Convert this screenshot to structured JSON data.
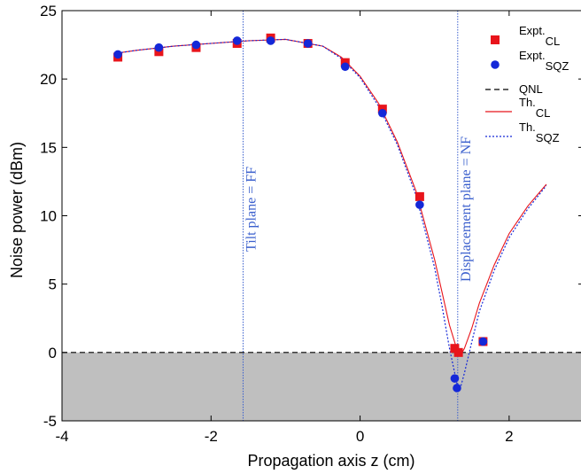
{
  "chart_data": {
    "type": "scatter",
    "xlabel": "Propagation axis z (cm)",
    "ylabel": "Noise power (dBm)",
    "xlim": [
      -4,
      3
    ],
    "ylim": [
      -5,
      25
    ],
    "xticks": [
      -4,
      -2,
      0,
      2
    ],
    "yticks": [
      -5,
      0,
      5,
      10,
      15,
      20,
      25
    ],
    "xtick_labels": [
      "-4",
      "-2",
      "0",
      "2"
    ],
    "ytick_labels": [
      "-5",
      "0",
      "5",
      "10",
      "15",
      "20",
      "25"
    ],
    "grid": false,
    "legend_position": "top-right",
    "shaded_region": {
      "y_from": -5,
      "y_to": 0,
      "color": "#bfbfbf"
    },
    "vertical_lines": [
      {
        "x": -1.57,
        "label": "Tilt  plane = FF",
        "color": "#3a5fcd"
      },
      {
        "x": 1.31,
        "label": "Displacement plane = NF",
        "color": "#3a5fcd"
      }
    ],
    "series": [
      {
        "name": "Expt.",
        "name_sub": "CL",
        "kind": "markers",
        "marker": "square",
        "color": "#e8141b",
        "x": [
          -3.25,
          -2.7,
          -2.2,
          -1.65,
          -1.2,
          -0.7,
          -0.2,
          0.3,
          0.8,
          1.27,
          1.32,
          1.65
        ],
        "y": [
          21.6,
          22.0,
          22.3,
          22.6,
          23.0,
          22.6,
          21.2,
          17.8,
          11.4,
          0.3,
          0.0,
          0.8
        ]
      },
      {
        "name": "Expt.",
        "name_sub": "SQZ",
        "kind": "markers",
        "marker": "circle",
        "color": "#1428d8",
        "x": [
          -3.25,
          -2.7,
          -2.2,
          -1.65,
          -1.2,
          -0.7,
          -0.2,
          0.3,
          0.8,
          1.27,
          1.3,
          1.65
        ],
        "y": [
          21.8,
          22.3,
          22.5,
          22.8,
          22.8,
          22.6,
          20.9,
          17.5,
          10.8,
          -1.9,
          -2.6,
          0.8
        ]
      },
      {
        "name": "QNL",
        "name_sub": "",
        "kind": "line",
        "dash": "6,4",
        "color": "#000000",
        "x": [
          -4,
          3
        ],
        "y": [
          0,
          0
        ]
      },
      {
        "name": "Th.",
        "name_sub": "CL",
        "kind": "line",
        "dash": "",
        "color": "#e8141b",
        "x": [
          -3.25,
          -3.0,
          -2.5,
          -2.0,
          -1.5,
          -1.0,
          -0.5,
          -0.25,
          0.0,
          0.25,
          0.5,
          0.75,
          1.0,
          1.1,
          1.2,
          1.3,
          1.35,
          1.4,
          1.5,
          1.6,
          1.8,
          2.0,
          2.25,
          2.5
        ],
        "y": [
          21.9,
          22.1,
          22.4,
          22.6,
          22.8,
          22.9,
          22.4,
          21.6,
          20.2,
          18.2,
          15.4,
          11.8,
          6.8,
          4.4,
          2.0,
          0.2,
          -0.2,
          0.3,
          1.8,
          3.6,
          6.4,
          8.7,
          10.7,
          12.3
        ]
      },
      {
        "name": "Th.",
        "name_sub": "SQZ",
        "kind": "line",
        "dash": "2,2",
        "color": "#1428d8",
        "x": [
          -3.25,
          -3.0,
          -2.5,
          -2.0,
          -1.5,
          -1.0,
          -0.5,
          -0.25,
          0.0,
          0.25,
          0.5,
          0.75,
          1.0,
          1.1,
          1.2,
          1.3,
          1.35,
          1.4,
          1.5,
          1.6,
          1.8,
          2.0,
          2.25,
          2.5
        ],
        "y": [
          21.9,
          22.1,
          22.4,
          22.6,
          22.8,
          22.9,
          22.4,
          21.5,
          20.1,
          18.0,
          15.2,
          11.5,
          6.2,
          3.4,
          0.3,
          -2.3,
          -2.5,
          -1.5,
          0.8,
          3.0,
          6.0,
          8.4,
          10.5,
          12.2
        ]
      }
    ]
  }
}
